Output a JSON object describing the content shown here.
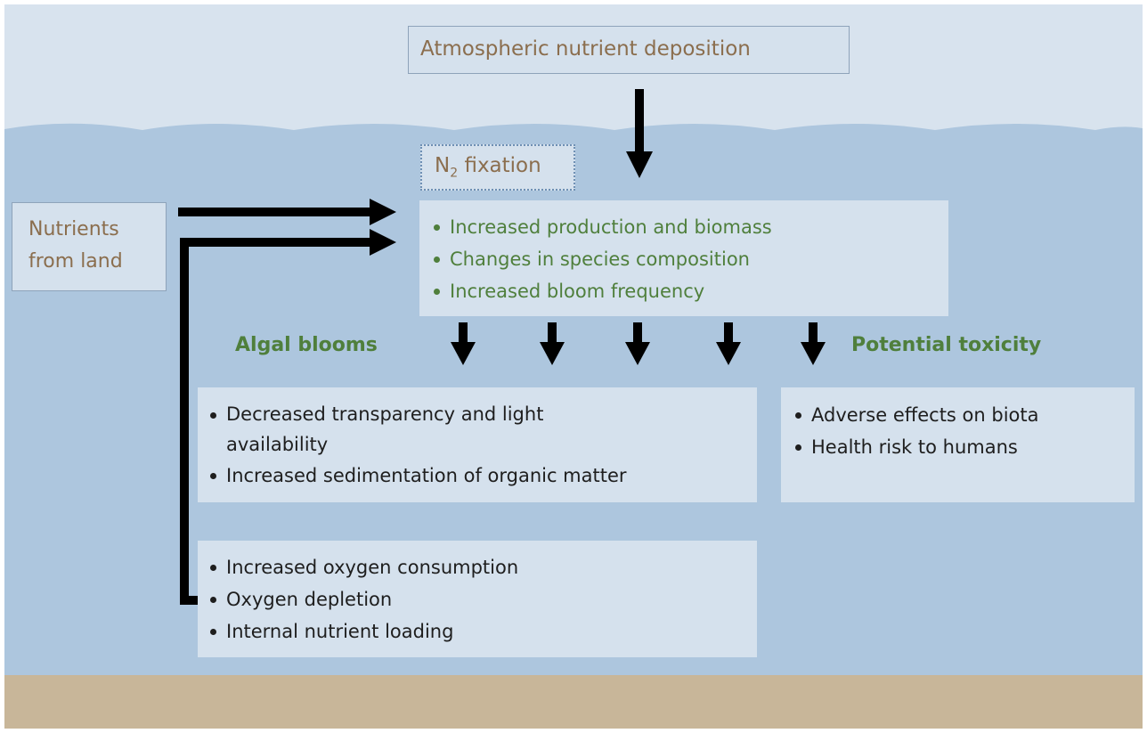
{
  "atmospheric": {
    "label": "Atmospheric nutrient deposition"
  },
  "n2_fixation": {
    "label": "N",
    "subscript": "2",
    "label_rest": "fixation"
  },
  "nutrients_from_land": {
    "lines": [
      "Nutrients",
      "from land"
    ]
  },
  "effects": {
    "items": [
      "Increased production and biomass",
      "Changes in species composition",
      "Increased bloom frequency"
    ]
  },
  "algal_blooms": {
    "title": "Algal blooms",
    "items": [
      "Decreased transparency and light availability",
      "Increased sedimentation of organic matter"
    ]
  },
  "potential_toxicity": {
    "title": "Potential toxicity",
    "items": [
      "Adverse effects on biota",
      "Health risk to humans"
    ]
  },
  "oxygen": {
    "items": [
      "Increased oxygen consumption",
      "Oxygen depletion",
      "Internal nutrient loading"
    ]
  }
}
